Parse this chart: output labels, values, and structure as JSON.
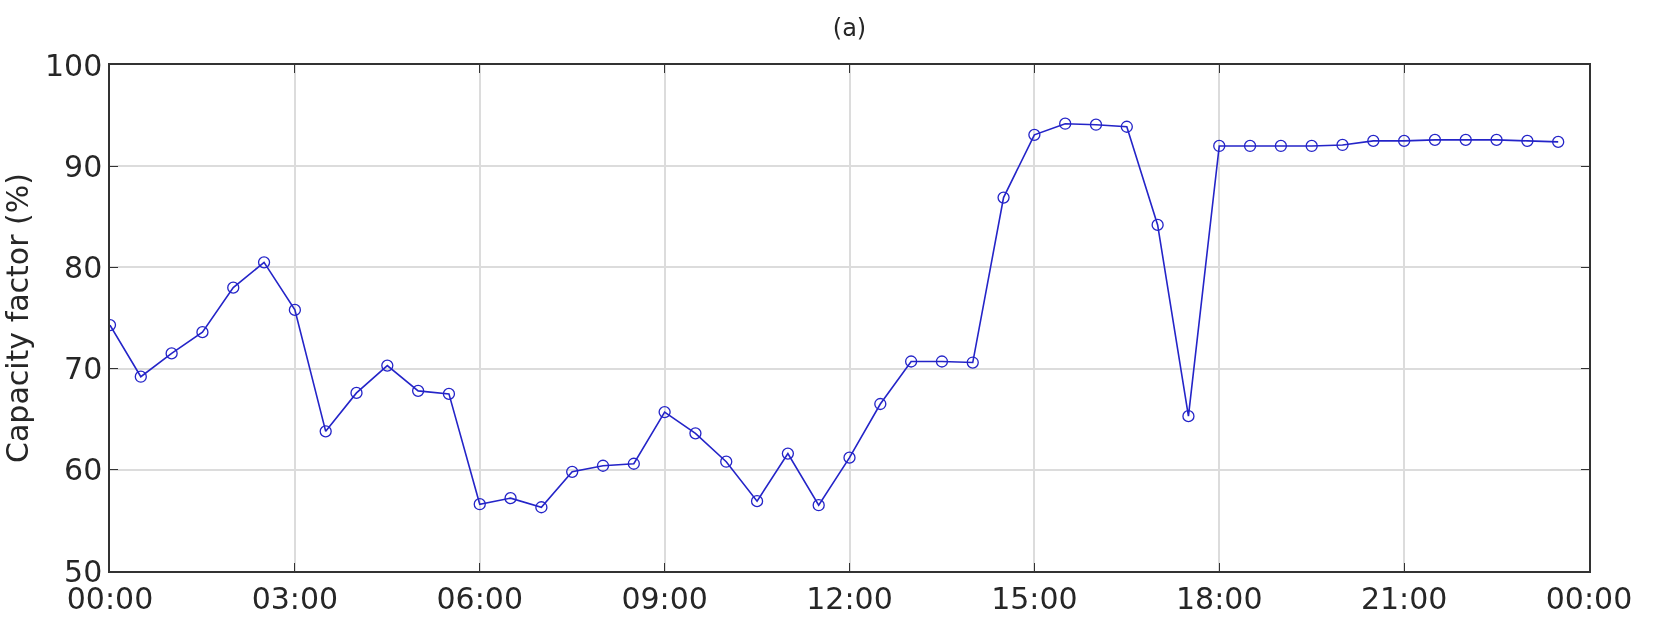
{
  "chart_data": {
    "type": "line",
    "title": "(a)",
    "ylabel": "Capacity factor (%)",
    "x": [
      0,
      0.5,
      1,
      1.5,
      2,
      2.5,
      3,
      3.5,
      4,
      4.5,
      5,
      5.5,
      6,
      6.5,
      7,
      7.5,
      8,
      8.5,
      9,
      9.5,
      10,
      10.5,
      11,
      11.5,
      12,
      12.5,
      13,
      13.5,
      14,
      14.5,
      15,
      15.5,
      16,
      16.5,
      17,
      17.5,
      18,
      18.5,
      19,
      19.5,
      20,
      20.5,
      21,
      21.5,
      22,
      22.5,
      23,
      23.5
    ],
    "series": [
      {
        "color": "#2424c8",
        "values": [
          74.3,
          69.2,
          71.5,
          73.6,
          78,
          80.5,
          75.8,
          63.8,
          67.6,
          70.3,
          67.8,
          67.5,
          56.6,
          57.2,
          56.3,
          59.8,
          60.4,
          60.6,
          65.7,
          63.6,
          60.8,
          56.9,
          61.6,
          56.5,
          61.2,
          66.5,
          70.7,
          70.7,
          70.6,
          86.9,
          93.1,
          94.2,
          94.1,
          93.9,
          84.2,
          65.3,
          92,
          92,
          92,
          92,
          92.1,
          92.5,
          92.5,
          92.6,
          92.6,
          92.6,
          92.5,
          92.4
        ]
      }
    ],
    "xlim": [
      0,
      24
    ],
    "xticks": [
      {
        "value": 0,
        "label": "00:00"
      },
      {
        "value": 3,
        "label": "03:00"
      },
      {
        "value": 6,
        "label": "06:00"
      },
      {
        "value": 9,
        "label": "09:00"
      },
      {
        "value": 12,
        "label": "12:00"
      },
      {
        "value": 15,
        "label": "15:00"
      },
      {
        "value": 18,
        "label": "18:00"
      },
      {
        "value": 21,
        "label": "21:00"
      },
      {
        "value": 24,
        "label": "00:00"
      }
    ],
    "ylim": [
      50,
      100
    ],
    "yticks": [
      50,
      60,
      70,
      80,
      90,
      100
    ],
    "grid": true,
    "legend": false,
    "marker": "circle",
    "line_style": "solid"
  }
}
